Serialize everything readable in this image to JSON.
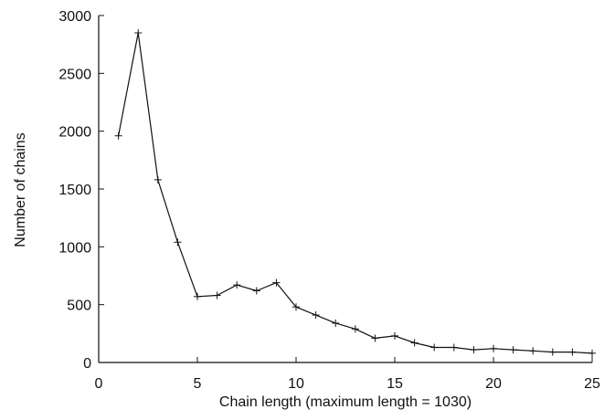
{
  "chart_data": {
    "type": "line",
    "xlabel": "Chain length (maximum length = 1030)",
    "ylabel": "Number of chains",
    "xlim": [
      0,
      25
    ],
    "ylim": [
      0,
      3000
    ],
    "xticks": [
      0,
      5,
      10,
      15,
      20,
      25
    ],
    "yticks": [
      0,
      500,
      1000,
      1500,
      2000,
      2500,
      3000
    ],
    "grid": false,
    "marker": "plus",
    "color": "#111111",
    "series": [
      {
        "x": [
          1,
          2,
          3,
          4,
          5,
          6,
          7,
          8,
          9,
          10,
          11,
          12,
          13,
          14,
          15,
          16,
          17,
          18,
          19,
          20,
          21,
          22,
          23,
          24,
          25
        ],
        "values": [
          1960,
          2850,
          1580,
          1040,
          570,
          580,
          670,
          620,
          690,
          480,
          410,
          340,
          290,
          210,
          230,
          170,
          130,
          130,
          110,
          120,
          110,
          100,
          90,
          90,
          80
        ]
      }
    ]
  }
}
